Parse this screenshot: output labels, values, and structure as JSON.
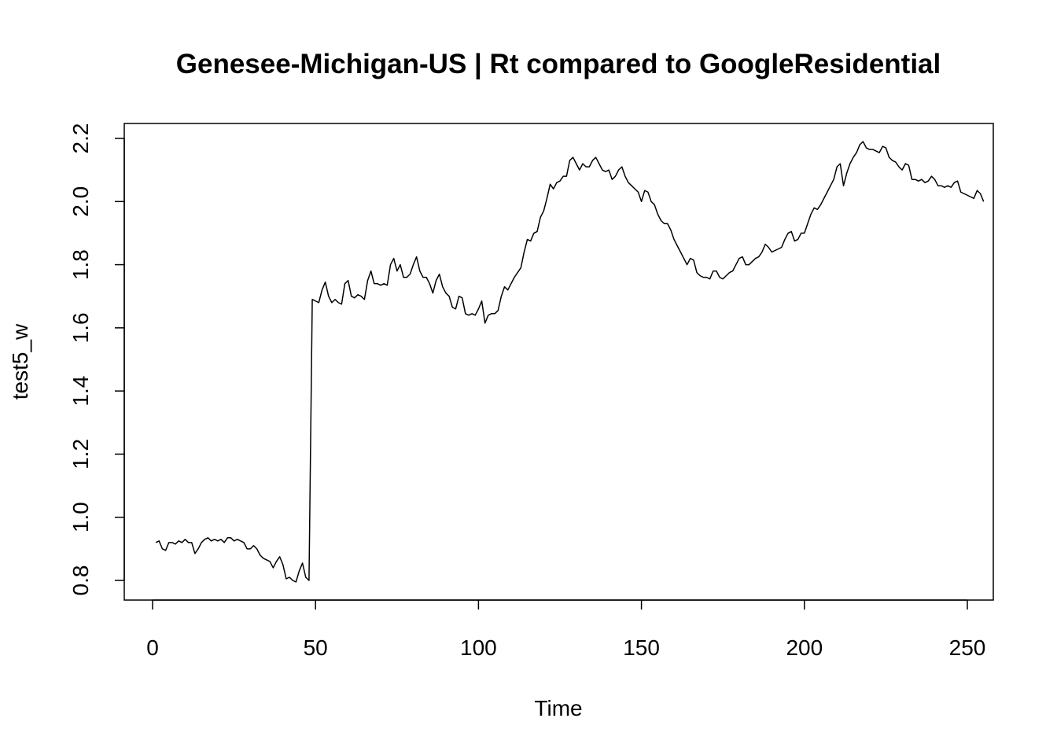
{
  "chart_data": {
    "type": "line",
    "title": "Genesee-Michigan-US | Rt compared to GoogleResidential",
    "xlabel": "Time",
    "ylabel": "test5_w",
    "xlim": [
      0,
      250
    ],
    "ylim": [
      0.8,
      2.2
    ],
    "x_ticks": [
      0,
      50,
      100,
      150,
      200,
      250
    ],
    "x_tick_labels": [
      "0",
      "50",
      "100",
      "150",
      "200",
      "250"
    ],
    "y_ticks": [
      0.8,
      1.0,
      1.2,
      1.4,
      1.6,
      1.8,
      2.0,
      2.2
    ],
    "y_tick_labels": [
      "0.8",
      "1.0",
      "1.2",
      "1.4",
      "1.6",
      "1.8",
      "2.0",
      "2.2"
    ],
    "grid": false,
    "legend": "none",
    "line_color": "#000000",
    "series": [
      {
        "x_start": 1,
        "x_step": 1,
        "values": [
          0.92,
          0.925,
          0.9,
          0.895,
          0.92,
          0.92,
          0.915,
          0.925,
          0.92,
          0.93,
          0.92,
          0.92,
          0.885,
          0.9,
          0.92,
          0.93,
          0.935,
          0.925,
          0.93,
          0.925,
          0.93,
          0.92,
          0.935,
          0.935,
          0.925,
          0.93,
          0.925,
          0.92,
          0.9,
          0.9,
          0.91,
          0.9,
          0.88,
          0.87,
          0.865,
          0.86,
          0.84,
          0.86,
          0.875,
          0.85,
          0.805,
          0.81,
          0.8,
          0.795,
          0.83,
          0.855,
          0.81,
          0.8,
          1.69,
          1.685,
          1.68,
          1.72,
          1.745,
          1.7,
          1.68,
          1.69,
          1.68,
          1.675,
          1.74,
          1.75,
          1.7,
          1.695,
          1.705,
          1.7,
          1.69,
          1.75,
          1.78,
          1.74,
          1.74,
          1.735,
          1.74,
          1.735,
          1.8,
          1.82,
          1.78,
          1.8,
          1.76,
          1.76,
          1.77,
          1.8,
          1.825,
          1.78,
          1.76,
          1.76,
          1.74,
          1.71,
          1.75,
          1.77,
          1.73,
          1.71,
          1.7,
          1.665,
          1.66,
          1.7,
          1.695,
          1.645,
          1.64,
          1.645,
          1.64,
          1.66,
          1.685,
          1.615,
          1.64,
          1.645,
          1.645,
          1.655,
          1.7,
          1.73,
          1.72,
          1.74,
          1.76,
          1.775,
          1.79,
          1.84,
          1.88,
          1.875,
          1.9,
          1.905,
          1.95,
          1.97,
          2.01,
          2.055,
          2.04,
          2.06,
          2.065,
          2.08,
          2.08,
          2.13,
          2.14,
          2.12,
          2.1,
          2.12,
          2.11,
          2.11,
          2.13,
          2.14,
          2.12,
          2.1,
          2.095,
          2.1,
          2.07,
          2.08,
          2.1,
          2.11,
          2.08,
          2.06,
          2.05,
          2.04,
          2.03,
          2.0,
          2.035,
          2.03,
          2.0,
          1.99,
          1.96,
          1.94,
          1.93,
          1.93,
          1.91,
          1.88,
          1.86,
          1.84,
          1.82,
          1.8,
          1.82,
          1.815,
          1.775,
          1.765,
          1.76,
          1.76,
          1.755,
          1.78,
          1.78,
          1.76,
          1.755,
          1.765,
          1.775,
          1.78,
          1.8,
          1.82,
          1.825,
          1.8,
          1.8,
          1.81,
          1.82,
          1.825,
          1.84,
          1.865,
          1.855,
          1.84,
          1.845,
          1.85,
          1.855,
          1.88,
          1.9,
          1.905,
          1.875,
          1.88,
          1.9,
          1.9,
          1.93,
          1.96,
          1.98,
          1.975,
          1.99,
          2.01,
          2.03,
          2.05,
          2.07,
          2.11,
          2.12,
          2.05,
          2.09,
          2.12,
          2.14,
          2.155,
          2.18,
          2.19,
          2.17,
          2.165,
          2.165,
          2.16,
          2.155,
          2.175,
          2.17,
          2.14,
          2.13,
          2.125,
          2.11,
          2.1,
          2.12,
          2.115,
          2.07,
          2.07,
          2.065,
          2.07,
          2.06,
          2.065,
          2.08,
          2.07,
          2.05,
          2.05,
          2.045,
          2.05,
          2.045,
          2.06,
          2.065,
          2.03,
          2.025,
          2.02,
          2.015,
          2.01,
          2.035,
          2.025,
          2.0
        ]
      }
    ]
  }
}
